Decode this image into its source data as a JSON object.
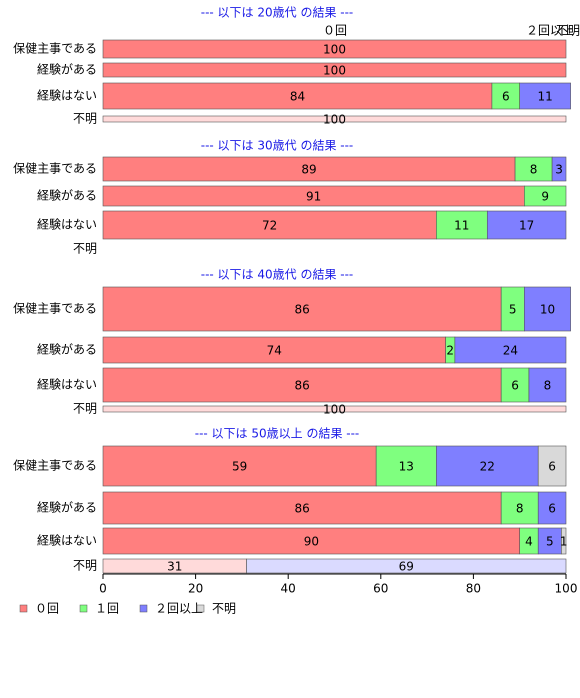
{
  "chart_data": {
    "type": "bar",
    "orientation": "horizontal",
    "stacked": true,
    "xlim": [
      0,
      100
    ],
    "xticks": [
      0,
      20,
      40,
      60,
      80,
      100
    ],
    "legend": [
      {
        "name": "０回",
        "color": "#ff7f7f",
        "minor_color": "#ffdada"
      },
      {
        "name": "１回",
        "color": "#7fff7f",
        "minor_color": "#daffda"
      },
      {
        "name": "２回以上",
        "color": "#7f7fff",
        "minor_color": "#dadaff"
      },
      {
        "name": "不明",
        "color": "#d9d9d9",
        "minor_color": "#eeeeee"
      }
    ],
    "panels": [
      {
        "title": "--- 以下は 20歳代 の結果 ---",
        "annotations": [
          "０回",
          "２回以上",
          "不明"
        ],
        "categories": [
          "保健主事である",
          "経験がある",
          "経験はない",
          "不明"
        ],
        "series": [
          {
            "values": [
              100,
              100,
              84,
              100
            ]
          },
          {
            "values": [
              0,
              0,
              6,
              0
            ]
          },
          {
            "values": [
              0,
              0,
              11,
              0
            ]
          },
          {
            "values": [
              0,
              0,
              0,
              0
            ]
          }
        ]
      },
      {
        "title": "--- 以下は 30歳代 の結果 ---",
        "categories": [
          "保健主事である",
          "経験がある",
          "経験はない",
          "不明"
        ],
        "series": [
          {
            "values": [
              89,
              91,
              72,
              0
            ]
          },
          {
            "values": [
              8,
              9,
              11,
              0
            ]
          },
          {
            "values": [
              3,
              0,
              17,
              0
            ]
          },
          {
            "values": [
              0,
              0,
              0,
              0
            ]
          }
        ]
      },
      {
        "title": "--- 以下は 40歳代 の結果 ---",
        "categories": [
          "保健主事である",
          "経験がある",
          "経験はない",
          "不明"
        ],
        "series": [
          {
            "values": [
              86,
              74,
              86,
              100
            ]
          },
          {
            "values": [
              5,
              2,
              6,
              0
            ]
          },
          {
            "values": [
              10,
              24,
              8,
              0
            ]
          },
          {
            "values": [
              0,
              0,
              0,
              0
            ]
          }
        ]
      },
      {
        "title": "--- 以下は 50歳以上 の結果 ---",
        "categories": [
          "保健主事である",
          "経験がある",
          "経験はない",
          "不明"
        ],
        "series": [
          {
            "values": [
              59,
              86,
              90,
              31
            ]
          },
          {
            "values": [
              13,
              8,
              4,
              0
            ]
          },
          {
            "values": [
              22,
              6,
              5,
              69
            ]
          },
          {
            "values": [
              6,
              0,
              1,
              0
            ]
          }
        ]
      }
    ]
  }
}
